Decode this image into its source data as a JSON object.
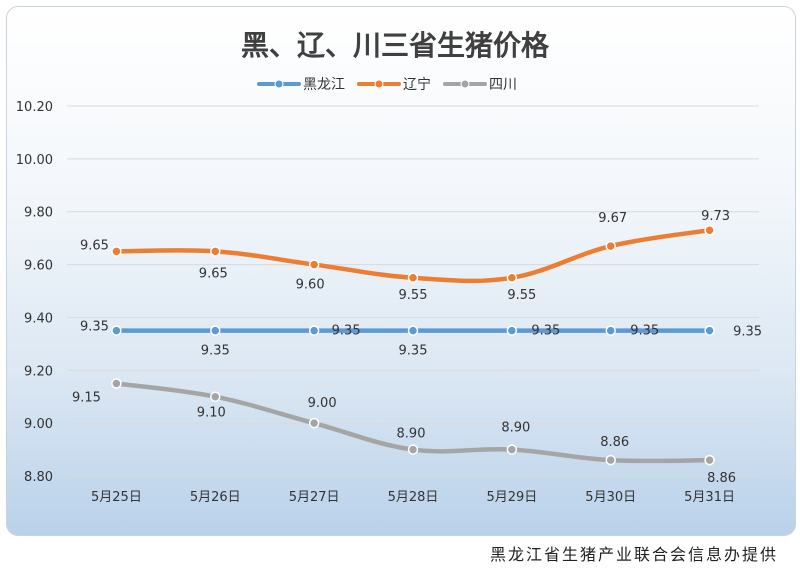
{
  "footer": {
    "credit": "黑龙江省生猪产业联合会信息办提供"
  },
  "chart_data": {
    "type": "line",
    "title": "黑、辽、川三省生猪价格",
    "categories": [
      "5月25日",
      "5月26日",
      "5月27日",
      "5月28日",
      "5月29日",
      "5月30日",
      "5月31日"
    ],
    "ylim": [
      8.8,
      10.2
    ],
    "yticks": [
      "8.80",
      "9.00",
      "9.20",
      "9.40",
      "9.60",
      "9.80",
      "10.00",
      "10.20"
    ],
    "grid": true,
    "legend_position": "top-center",
    "series": [
      {
        "name": "黑龙江",
        "color": "#5b9bd5",
        "values": [
          9.35,
          9.35,
          9.35,
          9.35,
          9.35,
          9.35,
          9.35
        ],
        "labels": [
          "9.35",
          "9.35",
          "9.35",
          "9.35",
          "9.35",
          "9.35",
          "9.35"
        ]
      },
      {
        "name": "辽宁",
        "color": "#ed7d31",
        "values": [
          9.65,
          9.65,
          9.6,
          9.55,
          9.55,
          9.67,
          9.73
        ],
        "labels": [
          "9.65",
          "9.65",
          "9.60",
          "9.55",
          "9.55",
          "9.67",
          "9.73"
        ]
      },
      {
        "name": "四川",
        "color": "#a5a5a5",
        "values": [
          9.15,
          9.1,
          9.0,
          8.9,
          8.9,
          8.86,
          8.86
        ],
        "labels": [
          "9.15",
          "9.10",
          "9.00",
          "8.90",
          "8.90",
          "8.86",
          "8.86"
        ]
      }
    ]
  }
}
